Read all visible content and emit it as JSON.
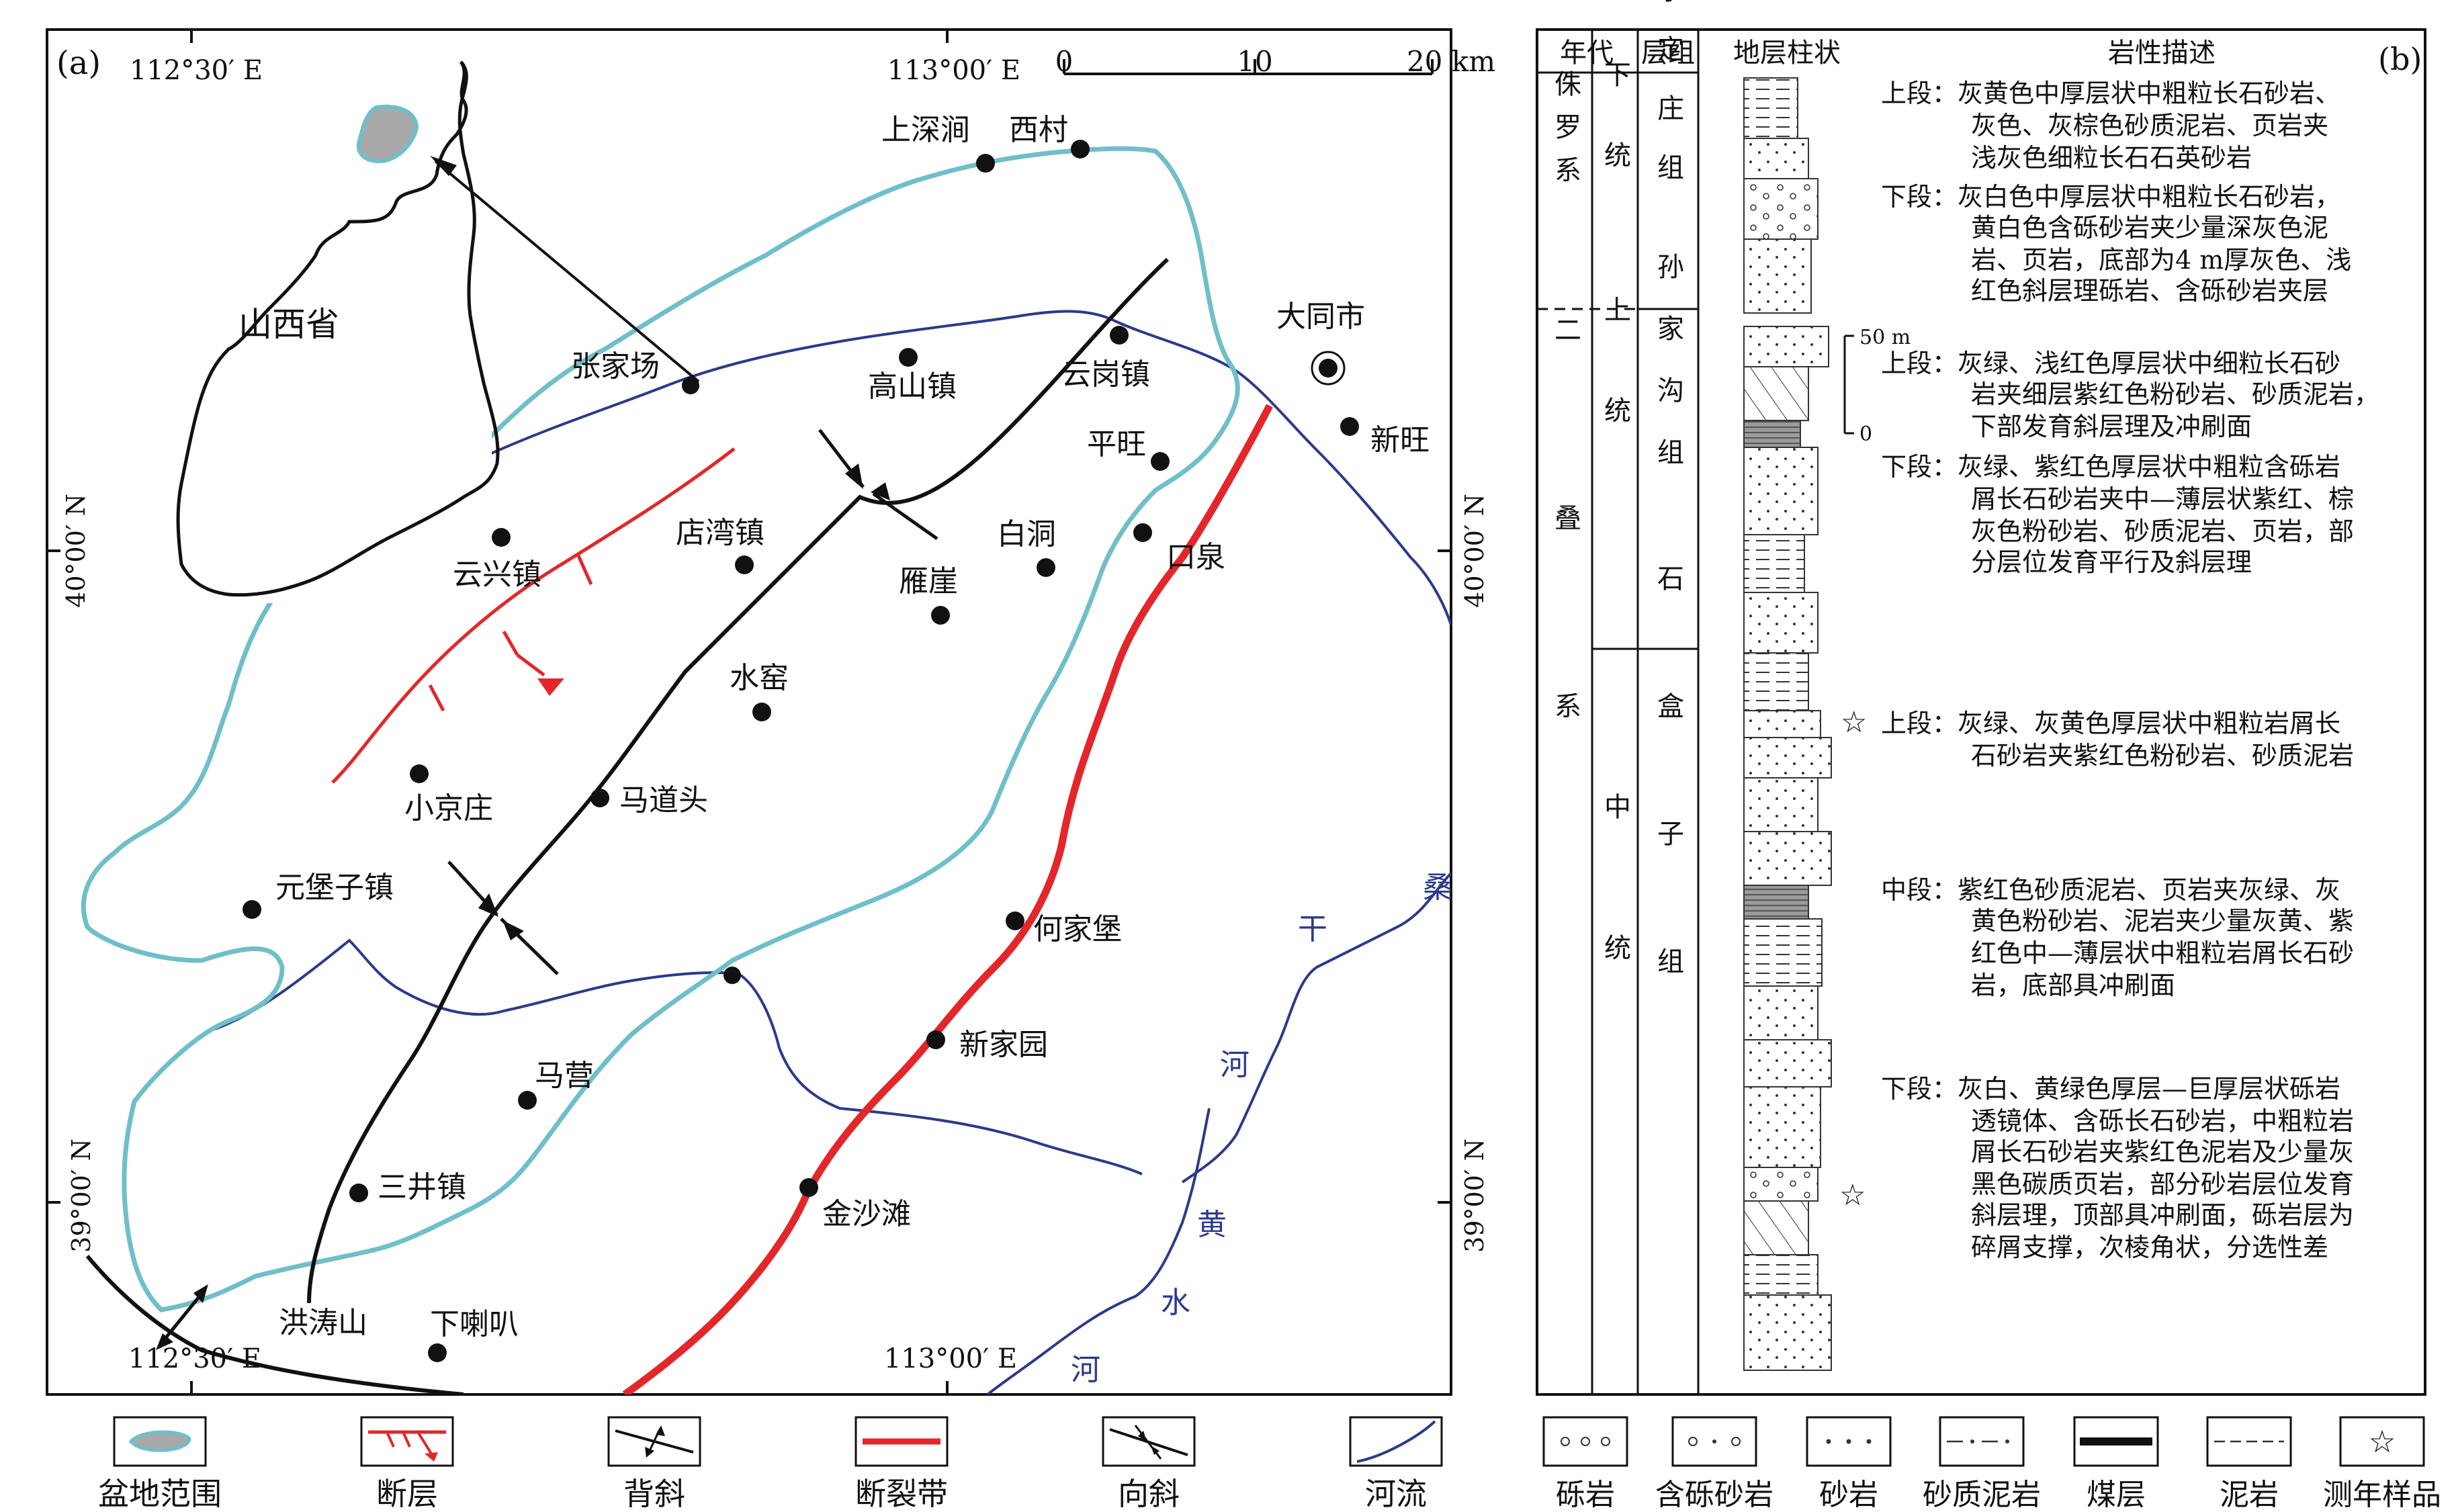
{
  "panel_a": {
    "label": "(a)",
    "coords": {
      "top_left_lon": "112°30′ E",
      "top_right_lon": "113°00′ E",
      "bottom_left_lon": "112°30′ E",
      "bottom_right_lon": "113°00′ E",
      "left_lat_40": "40°00′ N",
      "right_lat_40": "40°00′ N",
      "left_lat_39": "39°00′ N",
      "right_lat_39": "39°00′ N"
    },
    "scale": {
      "zero": "0",
      "ten": "10",
      "twenty": "20 km"
    },
    "inset": {
      "province": "山西省"
    },
    "places": {
      "shangshenjian": "上深涧",
      "xicun": "西村",
      "datong": "大同市",
      "zhangjiachang": "张家场",
      "gaoshanzhen": "高山镇",
      "yungangzhen": "云岗镇",
      "xinwang": "新旺",
      "pingwang": "平旺",
      "yunxingzhen": "云兴镇",
      "dianwanzhen": "店湾镇",
      "baidong": "白洞",
      "kouquan": "口泉",
      "yanya": "雁崖",
      "shuijiao": "水窑",
      "xiaojingzhuang": "小京庄",
      "madaotou": "马道头",
      "yuanbaozizhen": "元堡子镇",
      "hejiabao": "何家堡",
      "xinjiayuan": "新家园",
      "maying": "马营",
      "sanjingzhen": "三井镇",
      "jinshatan": "金沙滩",
      "hongtaoshan": "洪涛山",
      "xialaba": "下喇叭"
    },
    "rivers": {
      "sang": "桑",
      "gan": "干",
      "he1": "河",
      "huang": "黄",
      "shui": "水",
      "he2": "河"
    }
  },
  "panel_b": {
    "label": "(b)",
    "headers": {
      "age": "年代",
      "formation": "层组",
      "column": "地层柱状",
      "lithology": "岩性描述"
    },
    "systems": {
      "jurassic": "侏罗系",
      "permian": "二叠系"
    },
    "series": {
      "lower": "下统",
      "upper": "上统",
      "middle": "中统"
    },
    "formations": {
      "yongdingzhuang": "永定庄组",
      "sunjiagou": "孙家沟组",
      "shihezi": "石盒子组"
    },
    "scale": {
      "top": "50 m",
      "bottom": "0"
    },
    "descriptions": {
      "y_upper": [
        "上段：灰黄色中厚层状中粗粒长石砂岩、",
        "灰色、灰棕色砂质泥岩、页岩夹",
        "浅灰色细粒长石石英砂岩"
      ],
      "y_lower": [
        "下段：灰白色中厚层状中粗粒长石砂岩，",
        "黄白色含砾砂岩夹少量深灰色泥",
        "岩、页岩，底部为4 m厚灰色、浅",
        "红色斜层理砾岩、含砾砂岩夹层"
      ],
      "s_upper": [
        "上段：灰绿、浅红色厚层状中细粒长石砂",
        "岩夹细层紫红色粉砂岩、砂质泥岩，",
        "下部发育斜层理及冲刷面"
      ],
      "s_lower": [
        "下段：灰绿、紫红色厚层状中粗粒含砾岩",
        "屑长石砂岩夹中—薄层状紫红、棕",
        "灰色粉砂岩、砂质泥岩、页岩，部",
        "分层位发育平行及斜层理"
      ],
      "h_upper": [
        "上段：灰绿、灰黄色厚层状中粗粒岩屑长",
        "石砂岩夹紫红色粉砂岩、砂质泥岩"
      ],
      "h_middle": [
        "中段：紫红色砂质泥岩、页岩夹灰绿、灰",
        "黄色粉砂岩、泥岩夹少量灰黄、紫",
        "红色中—薄层状中粗粒岩屑长石砂",
        "岩，底部具冲刷面"
      ],
      "h_lower": [
        "下段：灰白、黄绿色厚层—巨厚层状砾岩",
        "透镜体、含砾长石砂岩，中粗粒岩",
        "屑长石砂岩夹紫红色泥岩及少量灰",
        "黑色碳质页岩，部分砂岩层位发育",
        "斜层理，顶部具冲刷面，砾岩层为",
        "碎屑支撑，次棱角状，分选性差"
      ]
    }
  },
  "legend_a": [
    "盆地范围",
    "断层",
    "背斜",
    "断裂带",
    "向斜",
    "河流"
  ],
  "legend_b": [
    "砾岩",
    "含砾砂岩",
    "砂岩",
    "砂质泥岩",
    "煤层",
    "泥岩",
    "测年样品"
  ],
  "colors": {
    "basin": "#6fbfc9",
    "fault": "#e4262a",
    "river": "#2b3a8a",
    "line": "#111111",
    "inset_fill": "#a9a9a9"
  }
}
